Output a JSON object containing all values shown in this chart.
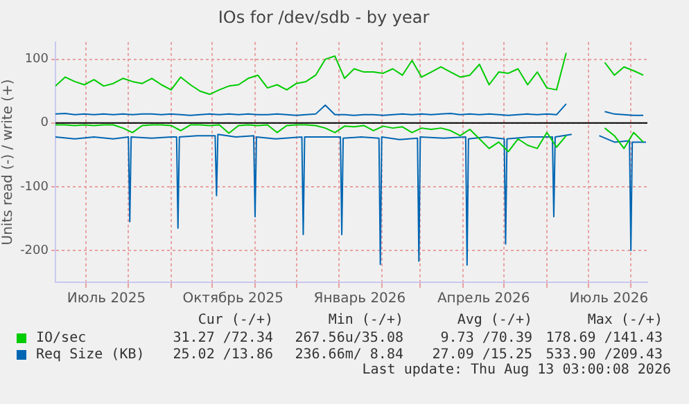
{
  "chart_data": {
    "type": "line",
    "title": "IOs for /dev/sdb - by year",
    "ylabel": "Units read (-) / write (+)",
    "x": [
      "2025-06-09",
      "2025-06-16",
      "2025-06-23",
      "2025-06-30",
      "2025-07-07",
      "2025-07-14",
      "2025-07-21",
      "2025-07-28",
      "2025-08-04",
      "2025-08-11",
      "2025-08-18",
      "2025-08-25",
      "2025-09-01",
      "2025-09-08",
      "2025-09-15",
      "2025-09-22",
      "2025-09-29",
      "2025-10-06",
      "2025-10-13",
      "2025-10-20",
      "2025-10-27",
      "2025-11-03",
      "2025-11-10",
      "2025-11-17",
      "2025-11-24",
      "2025-12-01",
      "2025-12-08",
      "2025-12-15",
      "2025-12-22",
      "2025-12-29",
      "2026-01-05",
      "2026-01-12",
      "2026-01-19",
      "2026-01-26",
      "2026-02-02",
      "2026-02-09",
      "2026-02-16",
      "2026-02-23",
      "2026-03-02",
      "2026-03-09",
      "2026-03-16",
      "2026-03-23",
      "2026-03-30",
      "2026-04-06",
      "2026-04-13",
      "2026-04-20",
      "2026-04-27",
      "2026-05-04",
      "2026-05-11",
      "2026-05-18",
      "2026-05-25",
      "2026-06-01",
      "2026-06-08",
      "2026-06-15",
      "2026-06-22",
      "2026-06-29",
      "2026-07-06",
      "2026-07-13",
      "2026-07-20",
      "2026-07-27",
      "2026-08-03",
      "2026-08-10"
    ],
    "series": [
      {
        "name": "IO/sec",
        "color": "#00cc00",
        "values": [
          58,
          72,
          65,
          60,
          68,
          58,
          62,
          70,
          65,
          62,
          70,
          60,
          52,
          72,
          60,
          50,
          45,
          52,
          58,
          60,
          70,
          75,
          55,
          60,
          52,
          62,
          65,
          75,
          100,
          105,
          70,
          85,
          80,
          80,
          78,
          85,
          75,
          98,
          72,
          80,
          88,
          80,
          72,
          75,
          92,
          60,
          80,
          78,
          85,
          60,
          80,
          55,
          52,
          110,
          null,
          null,
          null,
          95,
          75,
          88,
          82,
          75
        ]
      },
      {
        "color": "#00cc00",
        "values": [
          -3,
          -3,
          -4,
          -3,
          -4,
          -3,
          -3,
          -8,
          -15,
          -4,
          -3,
          -3,
          -4,
          -12,
          -3,
          -3,
          -4,
          -3,
          -16,
          -4,
          -3,
          -4,
          -3,
          -15,
          -4,
          -3,
          -3,
          -4,
          -8,
          -15,
          -5,
          -6,
          -4,
          -12,
          -5,
          -8,
          -6,
          -15,
          -8,
          -10,
          -8,
          -12,
          -20,
          -10,
          -25,
          -40,
          -30,
          -45,
          -25,
          -35,
          -40,
          -15,
          -38,
          -20,
          null,
          null,
          null,
          -8,
          -20,
          -40,
          -15,
          -30
        ]
      },
      {
        "name": "Req Size (KB)",
        "color": "#0066b3",
        "values": [
          14,
          15,
          13,
          14,
          13,
          14,
          13,
          14,
          13,
          14,
          14,
          13,
          14,
          13,
          12,
          13,
          14,
          13,
          14,
          13,
          14,
          13,
          13,
          14,
          13,
          12,
          13,
          14,
          28,
          13,
          13,
          12,
          13,
          13,
          12,
          13,
          14,
          13,
          14,
          13,
          14,
          15,
          13,
          14,
          13,
          14,
          13,
          12,
          13,
          14,
          13,
          14,
          13,
          30,
          null,
          null,
          null,
          18,
          14,
          13,
          12,
          12
        ]
      },
      {
        "color": "#0066b3",
        "x": [
          "2025-06-09",
          "2025-06-23",
          "2025-07-07",
          "2025-07-21",
          "2025-08-01",
          "2025-08-02",
          "2025-08-03",
          "2025-08-18",
          "2025-09-01",
          "2025-09-05",
          "2025-09-06",
          "2025-09-07",
          "2025-09-20",
          "2025-10-03",
          "2025-10-04",
          "2025-10-05",
          "2025-10-18",
          "2025-10-31",
          "2025-11-01",
          "2025-11-02",
          "2025-11-16",
          "2025-12-05",
          "2025-12-06",
          "2025-12-07",
          "2025-12-20",
          "2026-01-02",
          "2026-01-03",
          "2026-01-04",
          "2026-01-17",
          "2026-01-30",
          "2026-01-31",
          "2026-02-01",
          "2026-02-14",
          "2026-02-27",
          "2026-02-28",
          "2026-03-01",
          "2026-03-18",
          "2026-04-03",
          "2026-04-04",
          "2026-04-05",
          "2026-04-18",
          "2026-05-01",
          "2026-05-02",
          "2026-05-03",
          "2026-05-20",
          "2026-06-05",
          "2026-06-06",
          "2026-06-07",
          "2026-06-19",
          "2026-06-20",
          "2026-07-09",
          "2026-07-20",
          "2026-07-31",
          "2026-08-01",
          "2026-08-02",
          "2026-08-12"
        ],
        "values": [
          -22,
          -25,
          -22,
          -25,
          -22,
          -155,
          -22,
          -24,
          -22,
          -22,
          -165,
          -22,
          -20,
          -20,
          -114,
          -18,
          -22,
          -20,
          -147,
          -22,
          -25,
          -22,
          -175,
          -22,
          -22,
          -22,
          -175,
          -24,
          -22,
          -24,
          -222,
          -22,
          -26,
          -24,
          -217,
          -22,
          -24,
          -22,
          -223,
          -25,
          -22,
          -25,
          -190,
          -25,
          -22,
          -22,
          -147,
          -22,
          -18,
          null,
          -20,
          -30,
          -28,
          -200,
          -30,
          -30
        ]
      }
    ],
    "xlim": [
      "2025-06-09",
      "2026-08-13"
    ],
    "xticks": [
      {
        "value": "2025-07-01",
        "label": null
      },
      {
        "value": "2025-07-16",
        "label": "Июль 2025"
      },
      {
        "value": "2025-08-01",
        "label": null
      },
      {
        "value": "2025-09-01",
        "label": null
      },
      {
        "value": "2025-10-01",
        "label": null
      },
      {
        "value": "2025-10-16",
        "label": "Октябрь 2025"
      },
      {
        "value": "2025-11-01",
        "label": null
      },
      {
        "value": "2025-12-01",
        "label": null
      },
      {
        "value": "2026-01-01",
        "label": null
      },
      {
        "value": "2026-01-16",
        "label": "Январь 2026"
      },
      {
        "value": "2026-02-01",
        "label": null
      },
      {
        "value": "2026-03-01",
        "label": null
      },
      {
        "value": "2026-04-01",
        "label": null
      },
      {
        "value": "2026-04-16",
        "label": "Апрель 2026"
      },
      {
        "value": "2026-05-01",
        "label": null
      },
      {
        "value": "2026-06-01",
        "label": null
      },
      {
        "value": "2026-07-01",
        "label": null
      },
      {
        "value": "2026-07-16",
        "label": "Июль 2026"
      },
      {
        "value": "2026-08-01",
        "label": null
      }
    ],
    "ylim": [
      -250,
      127
    ],
    "yticks": [
      -200,
      -100,
      0,
      100
    ],
    "ref_lines": [
      {
        "axis": "y",
        "value": 0,
        "color": "#000000"
      }
    ],
    "grid": true,
    "legend": "bottom",
    "marker": "none",
    "line_style": "solid",
    "annotations": [
      "Cur (-/+)",
      "Min (-/+)",
      "Avg (-/+)",
      "Max (-/+)",
      "31.27 /72.34",
      "267.56u/35.08",
      "9.73 /70.39",
      "178.69 /141.43",
      "25.02 /13.86",
      "236.66m/ 8.84",
      "27.09 /15.25",
      "533.90 /209.43",
      "Last update: Thu Aug 13 03:00:08 2026"
    ]
  }
}
